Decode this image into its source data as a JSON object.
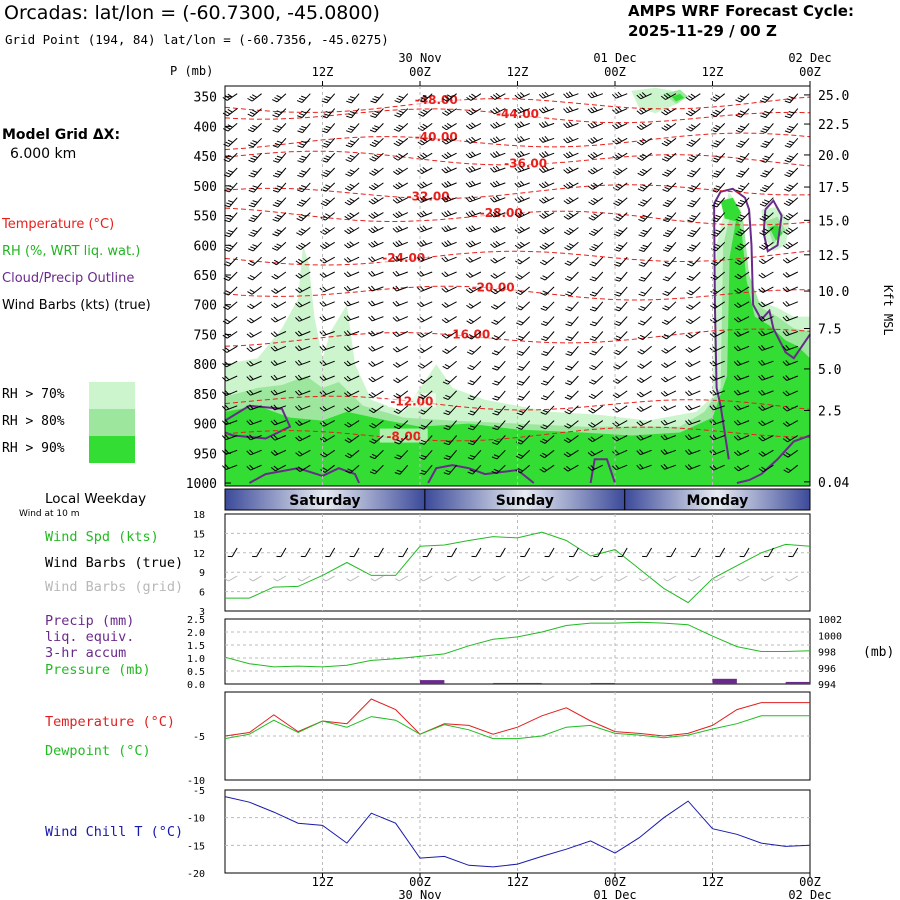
{
  "header": {
    "title": "Orcadas:  lat/lon = (-60.7300, -45.0800)",
    "subtitle": "Grid Point (194, 84) lat/lon = (-60.7356, -45.0275)",
    "cycle_line1": "AMPS WRF Forecast Cycle:",
    "cycle_line2": "2025-11-29 / 00  Z"
  },
  "left_panel": {
    "grid_label": "Model Grid ΔX:",
    "grid_value": "6.000 km",
    "legend": [
      {
        "label": "Temperature (°C)",
        "color": "#e8201c"
      },
      {
        "label": "RH (%, WRT liq. wat.)",
        "color": "#21b521"
      },
      {
        "label": "Cloud/Precip Outline",
        "color": "#6a2a8c"
      },
      {
        "label": "Wind Barbs (kts) (true)",
        "color": "#000000"
      }
    ],
    "rh_levels": [
      {
        "label": "RH > 70%",
        "color": "#cdf5cd"
      },
      {
        "label": "RH > 80%",
        "color": "#9de69d"
      },
      {
        "label": "RH > 90%",
        "color": "#33dd33"
      }
    ]
  },
  "chart_data": [
    {
      "type": "heatmap",
      "name": "cross-section",
      "ylabel": "P (mb)",
      "ylabel_right": "Kft MSL",
      "pressure_levels": [
        350,
        400,
        450,
        500,
        550,
        600,
        650,
        700,
        750,
        800,
        850,
        900,
        950,
        1000
      ],
      "kft_ticks": [
        "25.0",
        "22.5",
        "20.0",
        "17.5",
        "15.0",
        "12.5",
        "10.0",
        "7.5",
        "5.0",
        "2.5",
        "0.04"
      ],
      "kft_pressures": [
        347,
        396,
        448,
        502,
        558,
        616,
        677,
        740,
        808,
        878,
        998
      ],
      "time_ticks_top": [
        "12Z",
        "00Z",
        "12Z",
        "00Z",
        "12Z",
        "00Z"
      ],
      "date_labels_top": [
        "30 Nov",
        "01 Dec",
        "02 Dec"
      ],
      "temperature_contours": [
        {
          "value": -48,
          "label": "-48.00",
          "pressure": 363
        },
        {
          "value": -44,
          "label": "-44.00",
          "pressure": 382
        },
        {
          "value": -40,
          "label": "-40.00",
          "pressure": 425
        },
        {
          "value": -36,
          "label": "-36.00",
          "pressure": 455
        },
        {
          "value": -32,
          "label": "-32.00",
          "pressure": 510
        },
        {
          "value": -28,
          "label": "-28.00",
          "pressure": 552
        },
        {
          "value": -24,
          "label": "-24.00",
          "pressure": 620
        },
        {
          "value": -20,
          "label": "-20.00",
          "pressure": 680
        },
        {
          "value": -16,
          "label": "-16.00",
          "pressure": 755
        },
        {
          "value": -12,
          "label": "-12.00",
          "pressure": 867
        },
        {
          "value": -8,
          "label": "-8.00",
          "pressure": 918
        }
      ]
    },
    {
      "type": "line",
      "name": "wind-speed",
      "ylim": [
        3,
        18
      ],
      "yticks": [
        3,
        6,
        9,
        12,
        15,
        18
      ],
      "series": [
        {
          "name": "Wind Spd (kts)",
          "color": "#22bb22",
          "x": [
            0,
            3,
            6,
            9,
            12,
            15,
            18,
            21,
            24,
            27,
            30,
            33,
            36,
            39,
            42,
            45,
            48,
            51,
            54,
            57,
            60,
            63,
            66,
            69,
            72
          ],
          "values": [
            5.0,
            5.0,
            6.7,
            6.8,
            8.5,
            10.5,
            8.5,
            8.5,
            13.0,
            13.2,
            13.9,
            14.5,
            14.3,
            15.2,
            13.9,
            11.5,
            12.5,
            9.5,
            6.5,
            4.3,
            8.0,
            10.0,
            12.0,
            13.3,
            13.0
          ]
        }
      ]
    },
    {
      "type": "line",
      "name": "precip-pressure",
      "ylim": [
        0,
        2.5
      ],
      "yticks": [
        "0.0",
        "0.5",
        "1.0",
        "1.5",
        "2.0",
        "2.5"
      ],
      "ylim_right": [
        994,
        1002
      ],
      "yticks_right": [
        "994",
        "996",
        "998",
        "1000",
        "1002"
      ],
      "ylabel_right": "(mb)",
      "series": [
        {
          "name": "Pressure (mb)",
          "color": "#22bb22",
          "x": [
            0,
            3,
            6,
            9,
            12,
            15,
            18,
            21,
            24,
            27,
            30,
            33,
            36,
            39,
            42,
            45,
            48,
            51,
            54,
            57,
            60,
            63,
            66,
            69,
            72
          ],
          "values": [
            997.3,
            996.5,
            996.1,
            996.2,
            996.1,
            996.3,
            996.9,
            997.1,
            997.4,
            997.7,
            998.7,
            999.5,
            999.8,
            1000.4,
            1001.2,
            1001.5,
            1001.5,
            1001.6,
            1001.5,
            1001.3,
            999.9,
            998.6,
            998.0,
            998.0,
            998.1
          ]
        },
        {
          "name": "Precip (mm)",
          "color": "#6a2a8c",
          "type": "bar",
          "bins": [
            [
              24,
              27,
              0.15
            ],
            [
              33,
              39,
              0.04
            ],
            [
              45,
              48,
              0.04
            ],
            [
              60,
              63,
              0.2
            ],
            [
              69,
              72,
              0.08
            ]
          ]
        }
      ]
    },
    {
      "type": "line",
      "name": "temperature-dewpoint",
      "ylim": [
        -10,
        0
      ],
      "yticks": [
        -10,
        -5
      ],
      "series": [
        {
          "name": "Temperature (°C)",
          "color": "#e02020",
          "x": [
            0,
            3,
            6,
            9,
            12,
            15,
            18,
            21,
            24,
            27,
            30,
            33,
            36,
            39,
            42,
            45,
            48,
            51,
            54,
            57,
            60,
            63,
            66,
            69,
            72
          ],
          "values": [
            -5.0,
            -4.6,
            -2.6,
            -4.5,
            -3.3,
            -3.6,
            -0.8,
            -2.0,
            -4.8,
            -3.6,
            -3.8,
            -4.8,
            -4.0,
            -2.7,
            -1.8,
            -3.3,
            -4.5,
            -4.7,
            -5.0,
            -4.7,
            -3.8,
            -2.0,
            -1.2,
            -1.2,
            -1.2
          ]
        },
        {
          "name": "Dewpoint (°C)",
          "color": "#22bb22",
          "x": [
            0,
            3,
            6,
            9,
            12,
            15,
            18,
            21,
            24,
            27,
            30,
            33,
            36,
            39,
            42,
            45,
            48,
            51,
            54,
            57,
            60,
            63,
            66,
            69,
            72
          ],
          "values": [
            -5.3,
            -4.8,
            -3.2,
            -4.6,
            -3.3,
            -4.0,
            -2.8,
            -3.2,
            -4.8,
            -3.7,
            -4.3,
            -5.3,
            -5.3,
            -5.0,
            -4.0,
            -3.8,
            -4.7,
            -4.9,
            -5.2,
            -4.9,
            -4.2,
            -3.6,
            -2.7,
            -2.7,
            -2.7
          ]
        }
      ]
    },
    {
      "type": "line",
      "name": "wind-chill",
      "ylim": [
        -20,
        -5
      ],
      "yticks": [
        -20,
        -15,
        -10,
        -5
      ],
      "series": [
        {
          "name": "Wind Chill T (°C)",
          "color": "#1a1aaa",
          "x": [
            0,
            3,
            6,
            9,
            12,
            15,
            18,
            21,
            24,
            27,
            30,
            33,
            36,
            39,
            42,
            45,
            48,
            51,
            54,
            57,
            60,
            63,
            66,
            69,
            72
          ],
          "values": [
            -6.2,
            -7.2,
            -9.0,
            -11.0,
            -11.4,
            -14.6,
            -9.2,
            -11.0,
            -17.3,
            -17.0,
            -18.6,
            -18.9,
            -18.4,
            -17.0,
            -15.7,
            -14.2,
            -16.4,
            -13.6,
            -10.0,
            -7.0,
            -12.0,
            -13.0,
            -14.6,
            -15.2,
            -15.0
          ]
        }
      ]
    }
  ],
  "weekday_bar": {
    "title": "Local Weekday",
    "subtitle": "Wind at 10 m",
    "days": [
      "Saturday",
      "Sunday",
      "Monday"
    ]
  },
  "panel_labels": {
    "wind_speed": "Wind Spd (kts)",
    "wind_barbs_true": "Wind Barbs (true)",
    "wind_barbs_grid": "Wind Barbs (grid)",
    "precip1": "Precip (mm)",
    "precip2": "liq. equiv.",
    "precip3": "3-hr accum",
    "pressure": "Pressure (mb)",
    "temperature": "Temperature (°C)",
    "dewpoint": "Dewpoint (°C)",
    "wind_chill": "Wind Chill T (°C)"
  },
  "bottom_axis": {
    "time_ticks": [
      "12Z",
      "00Z",
      "12Z",
      "00Z",
      "12Z",
      "00Z"
    ],
    "date_labels": [
      "30 Nov",
      "01 Dec",
      "02 Dec"
    ]
  },
  "colors": {
    "temp": "#e8201c",
    "rh70": "#cdf5cd",
    "rh80": "#9de69d",
    "rh90": "#33dd33",
    "cloud": "#6a2a8c",
    "green": "#22bb22",
    "grey_barb": "#b8b8b8"
  }
}
